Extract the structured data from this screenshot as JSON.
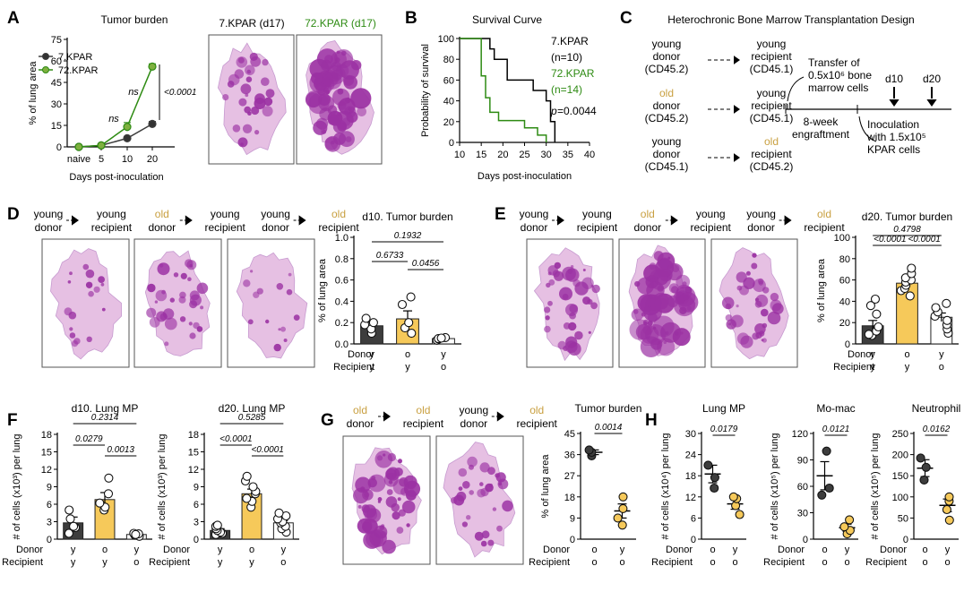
{
  "colors": {
    "young": "#3d3d3d",
    "old": "#f6c95a",
    "old_text": "#c9a041",
    "kpar72": "#2e8b13",
    "stain_light": "#e6c0e3",
    "stain_dark": "#9b31a3"
  },
  "panels": {
    "A": {
      "letter": "A",
      "label_naive": "naive",
      "lung_label_1": "7.KPAR (d17)",
      "lung_label_2": "72.KPAR (d17)",
      "images": [
        "lung-section-icon",
        "lung-section-icon"
      ]
    },
    "B": {
      "letter": "B"
    },
    "C": {
      "letter": "C",
      "title": "Heterochronic Bone Marrow Transplantation Design",
      "rows": [
        {
          "donor_age": "young",
          "donor": "donor",
          "donor_marker": "(CD45.2)",
          "recipient_age": "young",
          "recipient": "recipient",
          "recipient_marker": "(CD45.1)"
        },
        {
          "donor_age": "old",
          "donor": "donor",
          "donor_marker": "(CD45.2)",
          "recipient_age": "young",
          "recipient": "recipient",
          "recipient_marker": "(CD45.1)"
        },
        {
          "donor_age": "young",
          "donor": "donor",
          "donor_marker": "(CD45.1)",
          "recipient_age": "old",
          "recipient": "recipient",
          "recipient_marker": "(CD45.2)"
        }
      ],
      "transfer": [
        "Transfer of",
        "0.5x10⁶ bone",
        "marrow cells"
      ],
      "engraftment": [
        "8-week",
        "engraftment"
      ],
      "inoculation": [
        "Inoculation",
        "with 1.5x10⁵",
        "KPAR cells"
      ],
      "d10": "d10",
      "d20": "d20"
    },
    "D": {
      "letter": "D",
      "flow": [
        {
          "top": "young",
          "bottom": "donor",
          "age": "young"
        },
        {
          "top": "young",
          "bottom": "recipient",
          "age": "young"
        },
        {
          "top": "old",
          "bottom": "donor",
          "age": "old"
        },
        {
          "top": "young",
          "bottom": "recipient",
          "age": "young"
        },
        {
          "top": "young",
          "bottom": "donor",
          "age": "young"
        },
        {
          "top": "old",
          "bottom": "recipient",
          "age": "old"
        }
      ],
      "images": [
        "lung-section-icon",
        "lung-section-icon",
        "lung-section-icon"
      ]
    },
    "E": {
      "letter": "E",
      "flow": [
        {
          "top": "young",
          "bottom": "donor",
          "age": "young"
        },
        {
          "top": "young",
          "bottom": "recipient",
          "age": "young"
        },
        {
          "top": "old",
          "bottom": "donor",
          "age": "old"
        },
        {
          "top": "young",
          "bottom": "recipient",
          "age": "young"
        },
        {
          "top": "young",
          "bottom": "donor",
          "age": "young"
        },
        {
          "top": "old",
          "bottom": "recipient",
          "age": "old"
        }
      ],
      "images": [
        "lung-section-icon",
        "lung-section-icon",
        "lung-section-icon"
      ]
    },
    "F": {
      "letter": "F"
    },
    "G": {
      "letter": "G",
      "flow": [
        {
          "top": "old",
          "bottom": "donor",
          "age": "old"
        },
        {
          "top": "old",
          "bottom": "recipient",
          "age": "old"
        },
        {
          "top": "young",
          "bottom": "donor",
          "age": "young"
        },
        {
          "top": "old",
          "bottom": "recipient",
          "age": "old"
        }
      ],
      "images": [
        "lung-section-icon",
        "lung-section-icon"
      ]
    },
    "H": {
      "letter": "H"
    }
  },
  "chart_data": [
    {
      "id": "A",
      "type": "line",
      "title": "Tumor burden",
      "xlabel": "Days post-inoculation",
      "ylabel": "% of lung area",
      "categories": [
        "naive",
        "5",
        "10",
        "20"
      ],
      "ylim": [
        0,
        75
      ],
      "yticks": [
        0,
        15,
        30,
        45,
        60,
        75
      ],
      "series": [
        {
          "name": "7.KPAR",
          "color": "#3d3d3d",
          "values": [
            0,
            1,
            6,
            16
          ],
          "errors": [
            0,
            0.5,
            1.2,
            1.8
          ]
        },
        {
          "name": "72.KPAR",
          "color": "#2e8b13",
          "values": [
            0,
            1,
            14,
            56
          ],
          "errors": [
            0,
            0.5,
            3,
            2
          ]
        }
      ],
      "annotations": [
        "ns",
        "ns",
        "<0.0001"
      ]
    },
    {
      "id": "B",
      "type": "line",
      "subtype": "survival",
      "title": "Survival Curve",
      "xlabel": "Days post-inoculation",
      "ylabel": "Probability of survival",
      "xlim": [
        10,
        40
      ],
      "ylim": [
        0,
        100
      ],
      "xticks": [
        10,
        15,
        20,
        25,
        30,
        35,
        40
      ],
      "yticks": [
        0,
        20,
        40,
        60,
        80,
        100
      ],
      "series": [
        {
          "name": "7.KPAR",
          "n": "(n=10)",
          "color": "#000000",
          "steps": [
            [
              10,
              100
            ],
            [
              17,
              100
            ],
            [
              17,
              90
            ],
            [
              18,
              90
            ],
            [
              18,
              80
            ],
            [
              21,
              80
            ],
            [
              21,
              60
            ],
            [
              27,
              60
            ],
            [
              27,
              50
            ],
            [
              30,
              50
            ],
            [
              30,
              40
            ],
            [
              31,
              40
            ],
            [
              31,
              20
            ],
            [
              32,
              20
            ],
            [
              32,
              0
            ]
          ]
        },
        {
          "name": "72.KPAR",
          "n": "(n=14)",
          "color": "#2e8b13",
          "steps": [
            [
              10,
              100
            ],
            [
              15,
              100
            ],
            [
              15,
              64
            ],
            [
              16,
              64
            ],
            [
              16,
              43
            ],
            [
              17,
              43
            ],
            [
              17,
              29
            ],
            [
              19,
              29
            ],
            [
              19,
              21
            ],
            [
              25,
              21
            ],
            [
              25,
              14
            ],
            [
              28,
              14
            ],
            [
              28,
              7
            ],
            [
              30,
              7
            ],
            [
              30,
              0
            ]
          ]
        }
      ],
      "p_label": "p",
      "p_value": "=0.0044"
    },
    {
      "id": "D",
      "type": "bar",
      "title": "d10. Tumor burden",
      "ylabel": "% of lung area",
      "ylim": [
        0,
        1.0
      ],
      "yticks": [
        0.0,
        0.2,
        0.4,
        0.6,
        0.8,
        1.0
      ],
      "groups": [
        {
          "donor": "y",
          "recipient": "y",
          "color": "#3d3d3d",
          "mean": 0.17,
          "sem": 0.035,
          "points": [
            0.1,
            0.14,
            0.18,
            0.2,
            0.24
          ]
        },
        {
          "donor": "o",
          "recipient": "y",
          "color": "#f6c95a",
          "mean": 0.235,
          "sem": 0.075,
          "points": [
            0.1,
            0.15,
            0.2,
            0.37,
            0.44
          ]
        },
        {
          "donor": "y",
          "recipient": "o",
          "color": "#ffffff",
          "mean": 0.05,
          "sem": 0.008,
          "points": [
            0.035,
            0.045,
            0.05,
            0.06,
            0.055
          ]
        }
      ],
      "row_labels": [
        "Donor",
        "Recipient"
      ],
      "comparisons": [
        {
          "from": 0,
          "to": 2,
          "p": "0.1932"
        },
        {
          "from": 0,
          "to": 1,
          "p": "0.6733"
        },
        {
          "from": 1,
          "to": 2,
          "p": "0.0456"
        }
      ]
    },
    {
      "id": "E",
      "type": "bar",
      "title": "d20. Tumor burden",
      "ylabel": "% of lung area",
      "ylim": [
        0,
        100
      ],
      "yticks": [
        0,
        20,
        40,
        60,
        80,
        100
      ],
      "groups": [
        {
          "donor": "y",
          "recipient": "y",
          "color": "#3d3d3d",
          "mean": 17,
          "sem": 5,
          "points": [
            8,
            9,
            12,
            16,
            28,
            36,
            42
          ]
        },
        {
          "donor": "o",
          "recipient": "y",
          "color": "#f6c95a",
          "mean": 57,
          "sem": 3,
          "points": [
            45,
            50,
            52,
            55,
            58,
            60,
            62,
            66,
            71
          ]
        },
        {
          "donor": "y",
          "recipient": "o",
          "color": "#ffffff",
          "mean": 25,
          "sem": 4,
          "points": [
            10,
            14,
            18,
            22,
            26,
            30,
            34,
            38
          ]
        }
      ],
      "row_labels": [
        "Donor",
        "Recipient"
      ],
      "comparisons": [
        {
          "from": 0,
          "to": 2,
          "p": "0.4798"
        },
        {
          "from": 0,
          "to": 1,
          "p": "<0.0001"
        },
        {
          "from": 1,
          "to": 2,
          "p": "<0.0001"
        }
      ]
    },
    {
      "id": "F1",
      "type": "bar",
      "title": "d10. Lung MP",
      "ylabel": "# of cells (x10³) per lung",
      "ylim": [
        0,
        18
      ],
      "yticks": [
        0,
        3,
        6,
        9,
        12,
        15,
        18
      ],
      "groups": [
        {
          "donor": "y",
          "recipient": "y",
          "color": "#3d3d3d",
          "mean": 2.8,
          "sem": 1.0,
          "points": [
            1.0,
            2.0,
            2.2,
            3.5,
            5.0
          ]
        },
        {
          "donor": "o",
          "recipient": "y",
          "color": "#f6c95a",
          "mean": 6.8,
          "sem": 1.2,
          "points": [
            5.0,
            5.5,
            6.2,
            7.8,
            10.5
          ]
        },
        {
          "donor": "y",
          "recipient": "o",
          "color": "#ffffff",
          "mean": 0.8,
          "sem": 0.15,
          "points": [
            0.5,
            0.7,
            0.9,
            1.0,
            0.8
          ]
        }
      ],
      "row_labels": [
        "Donor",
        "Recipient"
      ],
      "comparisons": [
        {
          "from": 0,
          "to": 2,
          "p": "0.2314"
        },
        {
          "from": 0,
          "to": 1,
          "p": "0.0279"
        },
        {
          "from": 1,
          "to": 2,
          "p": "0.0013"
        }
      ]
    },
    {
      "id": "F2",
      "type": "bar",
      "title": "d20. Lung MP",
      "ylabel": "# of cells (x10³) per lung",
      "ylim": [
        0,
        18
      ],
      "yticks": [
        0,
        3,
        6,
        9,
        12,
        15,
        18
      ],
      "groups": [
        {
          "donor": "y",
          "recipient": "y",
          "color": "#3d3d3d",
          "mean": 1.5,
          "sem": 0.3,
          "points": [
            0.8,
            1.0,
            1.2,
            1.5,
            1.8,
            2.2,
            2.4
          ]
        },
        {
          "donor": "o",
          "recipient": "y",
          "color": "#f6c95a",
          "mean": 7.8,
          "sem": 0.8,
          "points": [
            5.5,
            6.5,
            7.0,
            7.8,
            8.2,
            9.0,
            10.0,
            10.8
          ]
        },
        {
          "donor": "y",
          "recipient": "o",
          "color": "#ffffff",
          "mean": 2.8,
          "sem": 0.4,
          "points": [
            1.2,
            1.8,
            2.2,
            2.8,
            3.0,
            3.5,
            4.0,
            4.5
          ]
        }
      ],
      "row_labels": [
        "Donor",
        "Recipient"
      ],
      "comparisons": [
        {
          "from": 0,
          "to": 2,
          "p": "0.5285"
        },
        {
          "from": 0,
          "to": 1,
          "p": "<0.0001"
        },
        {
          "from": 1,
          "to": 2,
          "p": "<0.0001"
        }
      ]
    },
    {
      "id": "G",
      "type": "scatter",
      "title": "Tumor burden",
      "ylabel": "% of lung area",
      "ylim": [
        0,
        45
      ],
      "yticks": [
        0,
        9,
        18,
        27,
        36,
        45
      ],
      "groups": [
        {
          "donor": "o",
          "recipient": "o",
          "color": "#3d3d3d",
          "mean": 37,
          "sem": 1,
          "points": [
            35.5,
            37,
            38
          ]
        },
        {
          "donor": "y",
          "recipient": "o",
          "color": "#f6c95a",
          "mean": 12,
          "sem": 3,
          "points": [
            6,
            9,
            13,
            18
          ]
        }
      ],
      "row_labels": [
        "Donor",
        "Recipient"
      ],
      "comparisons": [
        {
          "from": 0,
          "to": 1,
          "p": "0.0014"
        }
      ]
    },
    {
      "id": "H1",
      "type": "scatter",
      "title": "Lung MP",
      "ylabel": "# of cells (x10⁴) per lung",
      "ylim": [
        0,
        30
      ],
      "yticks": [
        0,
        6,
        12,
        18,
        24,
        30
      ],
      "groups": [
        {
          "donor": "o",
          "recipient": "o",
          "color": "#3d3d3d",
          "mean": 18.5,
          "sem": 2.5,
          "points": [
            14.5,
            17.5,
            21
          ]
        },
        {
          "donor": "y",
          "recipient": "o",
          "color": "#f6c95a",
          "mean": 10,
          "sem": 1.5,
          "points": [
            7,
            9.5,
            11.5,
            12
          ]
        }
      ],
      "row_labels": [
        "Donor",
        "Recipient"
      ],
      "comparisons": [
        {
          "from": 0,
          "to": 1,
          "p": "0.0179"
        }
      ]
    },
    {
      "id": "H2",
      "type": "scatter",
      "title": "Mo-mac",
      "ylabel": "# of cells (x10⁵) per lung",
      "ylim": [
        0,
        120
      ],
      "yticks": [
        0,
        30,
        60,
        90,
        120
      ],
      "groups": [
        {
          "donor": "o",
          "recipient": "o",
          "color": "#3d3d3d",
          "mean": 72,
          "sem": 16,
          "points": [
            50,
            58,
            100
          ]
        },
        {
          "donor": "y",
          "recipient": "o",
          "color": "#f6c95a",
          "mean": 13,
          "sem": 4,
          "points": [
            6,
            10,
            14,
            22
          ]
        }
      ],
      "row_labels": [
        "Donor",
        "Recipient"
      ],
      "comparisons": [
        {
          "from": 0,
          "to": 1,
          "p": "0.0121"
        }
      ]
    },
    {
      "id": "H3",
      "type": "scatter",
      "title": "Neutrophil",
      "ylabel": "# of cells (x10⁵) per lung",
      "ylim": [
        0,
        250
      ],
      "yticks": [
        0,
        50,
        100,
        150,
        200,
        250
      ],
      "groups": [
        {
          "donor": "o",
          "recipient": "o",
          "color": "#3d3d3d",
          "mean": 168,
          "sem": 20,
          "points": [
            140,
            170,
            192
          ]
        },
        {
          "donor": "y",
          "recipient": "o",
          "color": "#f6c95a",
          "mean": 80,
          "sem": 15,
          "points": [
            45,
            70,
            90,
            100
          ]
        }
      ],
      "row_labels": [
        "Donor",
        "Recipient"
      ],
      "comparisons": [
        {
          "from": 0,
          "to": 1,
          "p": "0.0162"
        }
      ]
    }
  ]
}
